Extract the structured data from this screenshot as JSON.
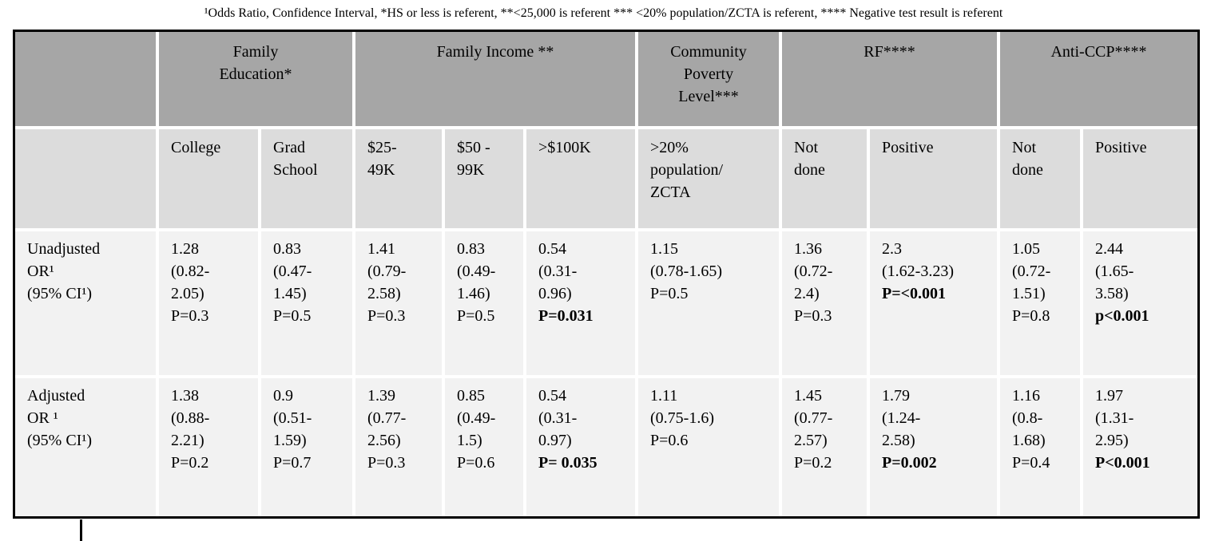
{
  "document": {
    "footnote": "¹Odds Ratio, Confidence Interval, *HS or less is referent, **<25,000 is referent *** <20% population/ZCTA is referent, **** Negative test result is referent"
  },
  "colors": {
    "group_header_bg": "#a6a6a6",
    "column_header_bg": "#dcdcdc",
    "data_row_bg": "#f2f2f2",
    "table_border": "#000000"
  },
  "table": {
    "group_headers": [
      {
        "name": "family-education",
        "lines": [
          "Family",
          "Education*"
        ],
        "span": 2
      },
      {
        "name": "family-income",
        "lines": [
          "Family Income **"
        ],
        "span": 3
      },
      {
        "name": "community-poverty-level",
        "lines": [
          "Community",
          "Poverty",
          "Level***"
        ],
        "span": 1
      },
      {
        "name": "rf",
        "lines": [
          "RF****"
        ],
        "span": 2
      },
      {
        "name": "anti-ccp",
        "lines": [
          "Anti-CCP****"
        ],
        "span": 2
      }
    ],
    "column_headers": [
      {
        "name": "college",
        "lines": [
          "College"
        ]
      },
      {
        "name": "grad-school",
        "lines": [
          "Grad",
          "School"
        ]
      },
      {
        "name": "income-25-49k",
        "lines": [
          "$25-",
          "49K"
        ]
      },
      {
        "name": "income-50-99k",
        "lines": [
          "$50 -",
          "99K"
        ]
      },
      {
        "name": "income-gt-100k",
        "lines": [
          ">$100K"
        ]
      },
      {
        "name": "gt20pct-population-zcta",
        "lines": [
          ">20%",
          "population/",
          "ZCTA"
        ]
      },
      {
        "name": "rf-not-done",
        "lines": [
          "Not",
          "done"
        ]
      },
      {
        "name": "rf-positive",
        "lines": [
          "Positive"
        ]
      },
      {
        "name": "anticcp-not-done",
        "lines": [
          "Not",
          "done"
        ]
      },
      {
        "name": "anticcp-positive",
        "lines": [
          "Positive"
        ]
      }
    ],
    "rows": [
      {
        "name": "unadjusted-or",
        "label_lines": [
          "Unadjusted",
          "OR¹",
          "(95% CI¹)"
        ],
        "cells": [
          {
            "lines": [
              "1.28",
              "(0.82-",
              "2.05)",
              "P=0.3"
            ],
            "bold_p": false
          },
          {
            "lines": [
              "0.83",
              "(0.47-",
              "1.45)",
              "P=0.5"
            ],
            "bold_p": false
          },
          {
            "lines": [
              "1.41",
              "(0.79-",
              "2.58)",
              "P=0.3"
            ],
            "bold_p": false
          },
          {
            "lines": [
              "0.83",
              "(0.49-",
              "1.46)",
              "P=0.5"
            ],
            "bold_p": false
          },
          {
            "lines": [
              "0.54",
              "(0.31-",
              "0.96)",
              "P=0.031"
            ],
            "bold_p": true
          },
          {
            "lines": [
              "1.15",
              "(0.78-1.65)",
              "P=0.5"
            ],
            "bold_p": false
          },
          {
            "lines": [
              "1.36",
              "(0.72-",
              "2.4)",
              "P=0.3"
            ],
            "bold_p": false
          },
          {
            "lines": [
              "2.3",
              "(1.62-3.23)",
              "P=<0.001"
            ],
            "bold_p": true
          },
          {
            "lines": [
              "1.05",
              "(0.72-",
              "1.51)",
              "P=0.8"
            ],
            "bold_p": false
          },
          {
            "lines": [
              "2.44",
              "(1.65-",
              "3.58)",
              "p<0.001"
            ],
            "bold_p": true
          }
        ]
      },
      {
        "name": "adjusted-or",
        "label_lines": [
          "Adjusted",
          "OR ¹",
          "(95% CI¹)"
        ],
        "cells": [
          {
            "lines": [
              "1.38",
              "(0.88-",
              "2.21)",
              "P=0.2"
            ],
            "bold_p": false
          },
          {
            "lines": [
              "0.9",
              "(0.51-",
              "1.59)",
              "P=0.7"
            ],
            "bold_p": false
          },
          {
            "lines": [
              "1.39",
              "(0.77-",
              "2.56)",
              "P=0.3"
            ],
            "bold_p": false
          },
          {
            "lines": [
              "0.85",
              "(0.49-",
              "1.5)",
              "P=0.6"
            ],
            "bold_p": false
          },
          {
            "lines": [
              "0.54",
              "(0.31-",
              "0.97)",
              "P= 0.035"
            ],
            "bold_p": true
          },
          {
            "lines": [
              "1.11",
              "(0.75-1.6)",
              "P=0.6"
            ],
            "bold_p": false
          },
          {
            "lines": [
              "1.45",
              "(0.77-",
              "2.57)",
              "P=0.2"
            ],
            "bold_p": false
          },
          {
            "lines": [
              "1.79",
              "(1.24-",
              "2.58)",
              "P=0.002"
            ],
            "bold_p": true
          },
          {
            "lines": [
              "1.16",
              "(0.8-",
              "1.68)",
              "P=0.4"
            ],
            "bold_p": false
          },
          {
            "lines": [
              "1.97",
              "(1.31-",
              "2.95)",
              "P<0.001"
            ],
            "bold_p": true
          }
        ]
      }
    ]
  }
}
